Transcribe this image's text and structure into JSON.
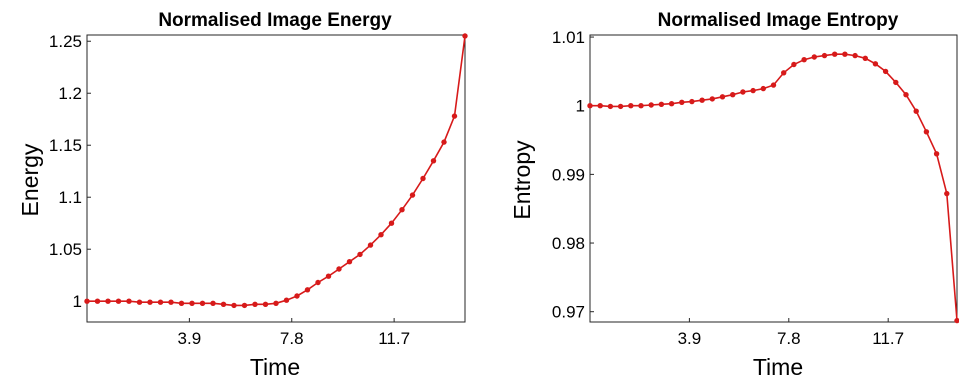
{
  "chart_data": [
    {
      "type": "line",
      "title": "Normalised Image Energy",
      "xlabel": "Time",
      "ylabel": "Energy",
      "xlim": [
        0,
        14.4
      ],
      "ylim": [
        0.98,
        1.256
      ],
      "xticks": [
        3.9,
        7.8,
        11.7
      ],
      "xtick_labels": [
        "3.9",
        "7.8",
        "11.7"
      ],
      "yticks": [
        1,
        1.05,
        1.1,
        1.15,
        1.2,
        1.25
      ],
      "ytick_labels": [
        "1",
        "1.05",
        "1.1",
        "1.15",
        "1.2",
        "1.25"
      ],
      "grid": false,
      "series": [
        {
          "color": "#d71a1a",
          "x": [
            0,
            0.4,
            0.8,
            1.2,
            1.6,
            2.0,
            2.4,
            2.8,
            3.2,
            3.6,
            4.0,
            4.4,
            4.8,
            5.2,
            5.6,
            6.0,
            6.4,
            6.8,
            7.2,
            7.6,
            8.0,
            8.4,
            8.8,
            9.2,
            9.6,
            10.0,
            10.4,
            10.8,
            11.2,
            11.6,
            12.0,
            12.4,
            12.8,
            13.2,
            13.6,
            14.0,
            14.4
          ],
          "y": [
            1.0,
            1.0,
            1.0,
            1.0,
            1.0,
            0.999,
            0.999,
            0.999,
            0.999,
            0.998,
            0.998,
            0.998,
            0.998,
            0.997,
            0.996,
            0.996,
            0.997,
            0.997,
            0.998,
            1.001,
            1.005,
            1.011,
            1.018,
            1.024,
            1.031,
            1.038,
            1.045,
            1.054,
            1.064,
            1.075,
            1.088,
            1.102,
            1.118,
            1.135,
            1.153,
            1.178,
            1.255
          ]
        }
      ]
    },
    {
      "type": "line",
      "title": "Normalised Image Entropy",
      "xlabel": "Time",
      "ylabel": "Entropy",
      "xlim": [
        0,
        14.4
      ],
      "ylim": [
        0.9685,
        1.0103
      ],
      "xticks": [
        3.9,
        7.8,
        11.7
      ],
      "xtick_labels": [
        "3.9",
        "7.8",
        "11.7"
      ],
      "yticks": [
        0.97,
        0.98,
        0.99,
        1,
        1.01
      ],
      "ytick_labels": [
        "0.97",
        "0.98",
        "0.99",
        "1",
        "1.01"
      ],
      "grid": false,
      "series": [
        {
          "color": "#d71a1a",
          "x": [
            0,
            0.4,
            0.8,
            1.2,
            1.6,
            2.0,
            2.4,
            2.8,
            3.2,
            3.6,
            4.0,
            4.4,
            4.8,
            5.2,
            5.6,
            6.0,
            6.4,
            6.8,
            7.2,
            7.6,
            8.0,
            8.4,
            8.8,
            9.2,
            9.6,
            10.0,
            10.4,
            10.8,
            11.2,
            11.6,
            12.0,
            12.4,
            12.8,
            13.2,
            13.6,
            14.0,
            14.4
          ],
          "y": [
            1.0,
            1.0,
            0.9999,
            0.9999,
            1.0,
            1.0,
            1.0001,
            1.0002,
            1.0003,
            1.0005,
            1.0006,
            1.0008,
            1.001,
            1.0013,
            1.0016,
            1.002,
            1.0022,
            1.0025,
            1.003,
            1.0048,
            1.006,
            1.0067,
            1.0071,
            1.0073,
            1.0075,
            1.0075,
            1.0073,
            1.0069,
            1.0061,
            1.005,
            1.0034,
            1.0016,
            0.9992,
            0.9962,
            0.993,
            0.9872,
            0.9687
          ]
        }
      ]
    }
  ]
}
